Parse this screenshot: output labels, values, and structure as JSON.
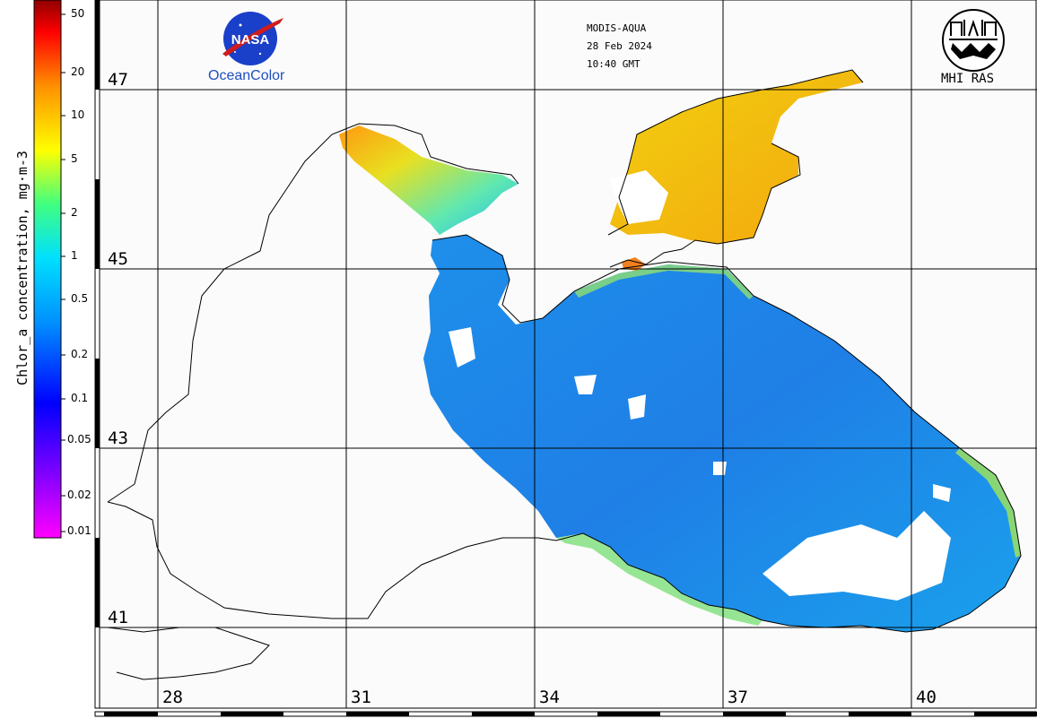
{
  "map": {
    "sensor": "MODIS-AQUA",
    "date": "28 Feb 2024",
    "time": "10:40 GMT",
    "nasa_logo_text": "NASA",
    "oceancolor_label": "OceanColor",
    "mhi_label": "MHI RAS",
    "latitudes": [
      "47",
      "45",
      "43",
      "41"
    ],
    "longitudes": [
      "28",
      "31",
      "34",
      "37",
      "40"
    ]
  },
  "colorbar": {
    "title": "Chlor_a concentration, mg·m-3",
    "ticks": [
      "50",
      "20",
      "10",
      "5",
      "2",
      "1",
      "0.5",
      "0.2",
      "0.1",
      "0.05",
      "0.02",
      "0.01"
    ],
    "colors": [
      "#ff00ff",
      "#7f00ff",
      "#0000ff",
      "#0080ff",
      "#00ffff",
      "#00ff80",
      "#ffff00",
      "#ff8000",
      "#ff0000",
      "#800000"
    ]
  }
}
